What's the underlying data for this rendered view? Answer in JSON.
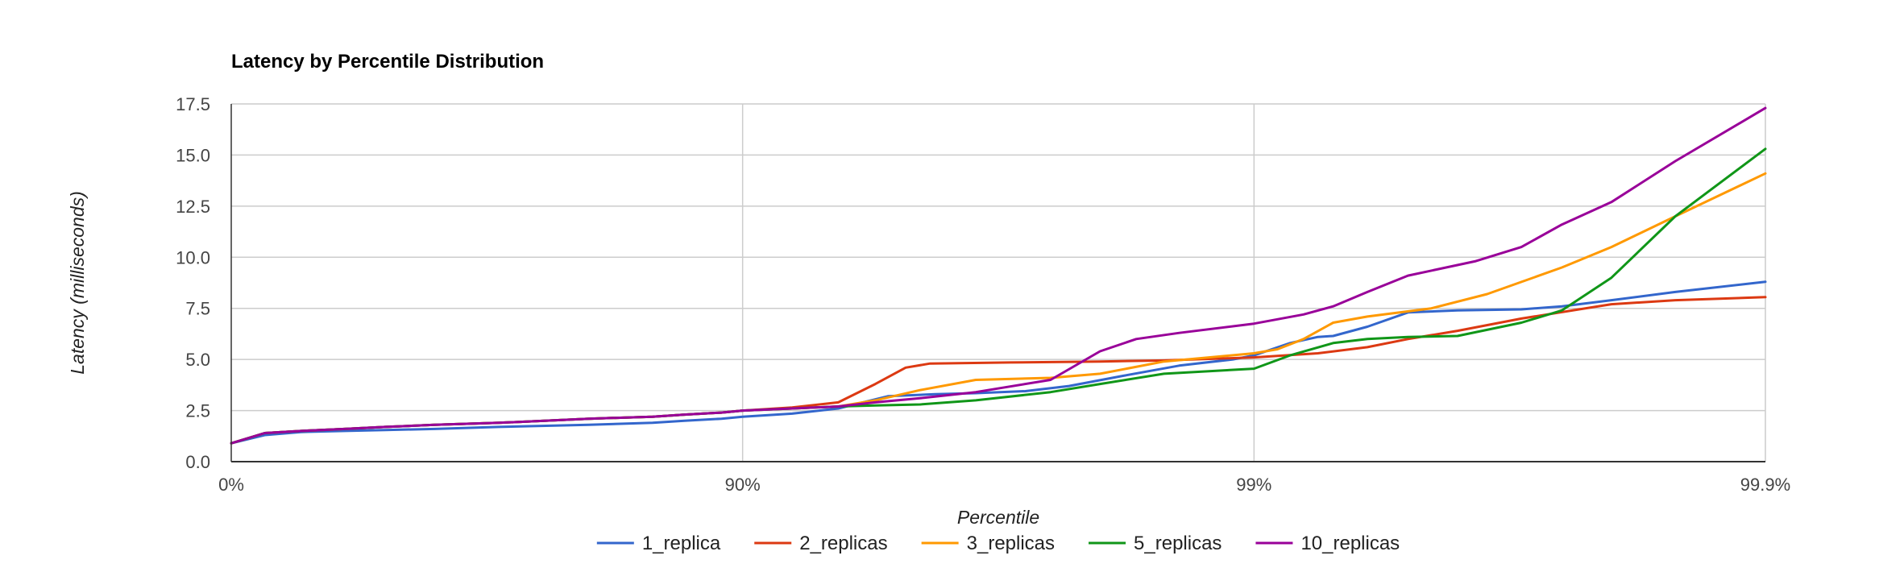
{
  "chart_data": {
    "type": "line",
    "title": "Latency by Percentile Distribution",
    "xlabel": "Percentile",
    "ylabel": "Latency (milliseconds)",
    "x_scale": "inverse-log-percentile",
    "x_ticks": [
      "0%",
      "90%",
      "99%",
      "99.9%"
    ],
    "y_ticks": [
      "0.0",
      "2.5",
      "5.0",
      "7.5",
      "10.0",
      "12.5",
      "15.0",
      "17.5"
    ],
    "ylim": [
      0,
      17.5
    ],
    "grid": true,
    "legend_position": "bottom",
    "series": [
      {
        "name": "1_replica",
        "color": "#3366cc",
        "points": [
          [
            0,
            0.9
          ],
          [
            0.14,
            1.3
          ],
          [
            0.27,
            1.45
          ],
          [
            0.4,
            1.5
          ],
          [
            0.5,
            1.55
          ],
          [
            0.6,
            1.6
          ],
          [
            0.7,
            1.7
          ],
          [
            0.8,
            1.8
          ],
          [
            0.85,
            1.9
          ],
          [
            0.87,
            2.0
          ],
          [
            0.89,
            2.1
          ],
          [
            0.9,
            2.2
          ],
          [
            0.92,
            2.35
          ],
          [
            0.935,
            2.6
          ],
          [
            0.948,
            3.2
          ],
          [
            0.958,
            3.3
          ],
          [
            0.965,
            3.35
          ],
          [
            0.972,
            3.45
          ],
          [
            0.977,
            3.7
          ],
          [
            0.982,
            4.2
          ],
          [
            0.986,
            4.7
          ],
          [
            0.989,
            5.0
          ],
          [
            0.99,
            5.2
          ],
          [
            0.9915,
            5.8
          ],
          [
            0.9925,
            6.1
          ],
          [
            0.993,
            6.15
          ],
          [
            0.994,
            6.6
          ],
          [
            0.995,
            7.3
          ],
          [
            0.996,
            7.4
          ],
          [
            0.997,
            7.45
          ],
          [
            0.9975,
            7.6
          ],
          [
            0.998,
            7.9
          ],
          [
            0.9985,
            8.3
          ],
          [
            0.999,
            8.8
          ]
        ]
      },
      {
        "name": "2_replicas",
        "color": "#dc3912",
        "points": [
          [
            0,
            0.9
          ],
          [
            0.14,
            1.4
          ],
          [
            0.27,
            1.5
          ],
          [
            0.4,
            1.6
          ],
          [
            0.5,
            1.7
          ],
          [
            0.6,
            1.8
          ],
          [
            0.7,
            1.9
          ],
          [
            0.8,
            2.1
          ],
          [
            0.85,
            2.2
          ],
          [
            0.87,
            2.3
          ],
          [
            0.89,
            2.4
          ],
          [
            0.9,
            2.5
          ],
          [
            0.92,
            2.65
          ],
          [
            0.935,
            2.9
          ],
          [
            0.945,
            3.8
          ],
          [
            0.952,
            4.6
          ],
          [
            0.957,
            4.8
          ],
          [
            0.97,
            4.85
          ],
          [
            0.98,
            4.9
          ],
          [
            0.985,
            4.95
          ],
          [
            0.99,
            5.1
          ],
          [
            0.9925,
            5.3
          ],
          [
            0.994,
            5.6
          ],
          [
            0.995,
            6.0
          ],
          [
            0.996,
            6.4
          ],
          [
            0.997,
            7.0
          ],
          [
            0.998,
            7.7
          ],
          [
            0.9985,
            7.9
          ],
          [
            0.999,
            8.05
          ]
        ]
      },
      {
        "name": "3_replicas",
        "color": "#ff9900",
        "points": [
          [
            0,
            0.9
          ],
          [
            0.14,
            1.4
          ],
          [
            0.27,
            1.5
          ],
          [
            0.4,
            1.6
          ],
          [
            0.5,
            1.7
          ],
          [
            0.6,
            1.8
          ],
          [
            0.7,
            1.9
          ],
          [
            0.8,
            2.1
          ],
          [
            0.85,
            2.2
          ],
          [
            0.87,
            2.3
          ],
          [
            0.89,
            2.4
          ],
          [
            0.9,
            2.5
          ],
          [
            0.92,
            2.6
          ],
          [
            0.935,
            2.7
          ],
          [
            0.945,
            3.0
          ],
          [
            0.955,
            3.5
          ],
          [
            0.965,
            4.0
          ],
          [
            0.975,
            4.1
          ],
          [
            0.98,
            4.3
          ],
          [
            0.985,
            4.9
          ],
          [
            0.99,
            5.3
          ],
          [
            0.991,
            5.5
          ],
          [
            0.992,
            6.0
          ],
          [
            0.993,
            6.8
          ],
          [
            0.994,
            7.1
          ],
          [
            0.9955,
            7.5
          ],
          [
            0.9965,
            8.2
          ],
          [
            0.9975,
            9.5
          ],
          [
            0.998,
            10.5
          ],
          [
            0.9985,
            12.0
          ],
          [
            0.999,
            14.1
          ]
        ]
      },
      {
        "name": "5_replicas",
        "color": "#109618",
        "points": [
          [
            0,
            0.9
          ],
          [
            0.14,
            1.4
          ],
          [
            0.27,
            1.5
          ],
          [
            0.4,
            1.6
          ],
          [
            0.5,
            1.7
          ],
          [
            0.6,
            1.8
          ],
          [
            0.7,
            1.9
          ],
          [
            0.8,
            2.1
          ],
          [
            0.85,
            2.2
          ],
          [
            0.87,
            2.3
          ],
          [
            0.89,
            2.4
          ],
          [
            0.9,
            2.5
          ],
          [
            0.92,
            2.6
          ],
          [
            0.935,
            2.7
          ],
          [
            0.945,
            2.75
          ],
          [
            0.955,
            2.8
          ],
          [
            0.965,
            3.0
          ],
          [
            0.975,
            3.4
          ],
          [
            0.98,
            3.8
          ],
          [
            0.985,
            4.3
          ],
          [
            0.99,
            4.55
          ],
          [
            0.9915,
            5.2
          ],
          [
            0.993,
            5.8
          ],
          [
            0.994,
            6.0
          ],
          [
            0.995,
            6.1
          ],
          [
            0.996,
            6.15
          ],
          [
            0.997,
            6.8
          ],
          [
            0.9975,
            7.4
          ],
          [
            0.998,
            9.0
          ],
          [
            0.9985,
            12.0
          ],
          [
            0.999,
            15.3
          ]
        ]
      },
      {
        "name": "10_replicas",
        "color": "#990099",
        "points": [
          [
            0,
            0.9
          ],
          [
            0.14,
            1.4
          ],
          [
            0.27,
            1.5
          ],
          [
            0.4,
            1.6
          ],
          [
            0.5,
            1.7
          ],
          [
            0.6,
            1.8
          ],
          [
            0.7,
            1.9
          ],
          [
            0.8,
            2.1
          ],
          [
            0.85,
            2.2
          ],
          [
            0.87,
            2.3
          ],
          [
            0.89,
            2.4
          ],
          [
            0.9,
            2.5
          ],
          [
            0.92,
            2.6
          ],
          [
            0.935,
            2.7
          ],
          [
            0.945,
            2.9
          ],
          [
            0.955,
            3.1
          ],
          [
            0.965,
            3.4
          ],
          [
            0.975,
            4.0
          ],
          [
            0.98,
            5.4
          ],
          [
            0.983,
            6.0
          ],
          [
            0.986,
            6.3
          ],
          [
            0.99,
            6.75
          ],
          [
            0.992,
            7.2
          ],
          [
            0.993,
            7.6
          ],
          [
            0.994,
            8.3
          ],
          [
            0.995,
            9.1
          ],
          [
            0.9963,
            9.8
          ],
          [
            0.997,
            10.5
          ],
          [
            0.9975,
            11.6
          ],
          [
            0.998,
            12.7
          ],
          [
            0.9985,
            14.7
          ],
          [
            0.999,
            17.3
          ]
        ]
      }
    ]
  }
}
